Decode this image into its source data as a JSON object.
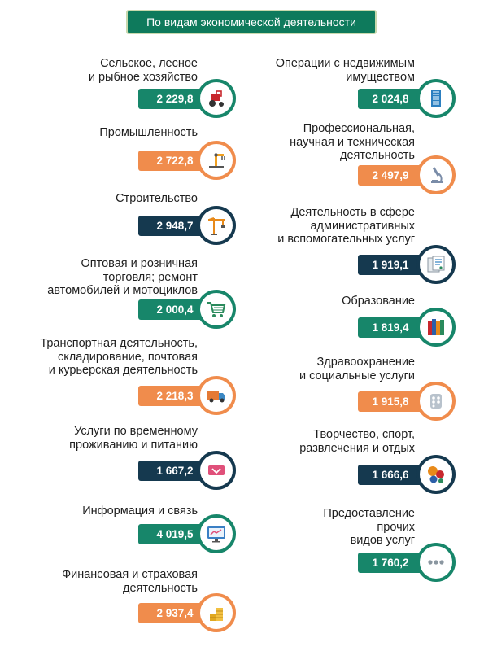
{
  "header": {
    "title": "По видам экономической деятельности"
  },
  "colors": {
    "green": "#17866a",
    "orange": "#f08c4c",
    "navy": "#15394f"
  },
  "left": [
    {
      "label": "Сельское, лесное\nи рыбное хозяйство",
      "value": "2 229,8",
      "color": "green",
      "icon": "tractor-icon"
    },
    {
      "label": "Промышленность",
      "value": "2 722,8",
      "color": "orange",
      "icon": "robot-arm-icon"
    },
    {
      "label": "Строительство",
      "value": "2 948,7",
      "color": "navy",
      "icon": "crane-icon"
    },
    {
      "label": "Оптовая и розничная\nторговля; ремонт\nавтомобилей и мотоциклов",
      "value": "2 000,4",
      "color": "green",
      "icon": "shopping-cart-icon"
    },
    {
      "label": "Транспортная деятельность,\nскладирование, почтовая\nи курьерская деятельность",
      "value": "2 218,3",
      "color": "orange",
      "icon": "truck-icon"
    },
    {
      "label": "Услуги по временному\nпроживанию и питанию",
      "value": "1 667,2",
      "color": "navy",
      "icon": "hotel-sign-icon"
    },
    {
      "label": "Информация и связь",
      "value": "4 019,5",
      "color": "green",
      "icon": "monitor-icon"
    },
    {
      "label": "Финансовая и страховая\nдеятельность",
      "value": "2 937,4",
      "color": "orange",
      "icon": "coins-icon"
    }
  ],
  "right": [
    {
      "label": "Операции с недвижимым\nимуществом",
      "value": "2 024,8",
      "color": "green",
      "icon": "building-icon"
    },
    {
      "label": "Профессиональная,\nнаучная и техническая\nдеятельность",
      "value": "2 497,9",
      "color": "orange",
      "icon": "microscope-icon"
    },
    {
      "label": "Деятельность в сфере\nадминистративных\nи вспомогательных услуг",
      "value": "1 919,1",
      "color": "navy",
      "icon": "documents-icon"
    },
    {
      "label": "Образование",
      "value": "1 819,4",
      "color": "green",
      "icon": "books-icon"
    },
    {
      "label": "Здравоохранение\nи социальные услуги",
      "value": "1 915,8",
      "color": "orange",
      "icon": "pills-icon"
    },
    {
      "label": "Творчество, спорт,\nразвлечения и отдых",
      "value": "1 666,6",
      "color": "navy",
      "icon": "sports-balls-icon"
    },
    {
      "label": "Предоставление\nпрочих\nвидов услуг",
      "value": "1 760,2",
      "color": "green",
      "icon": "ellipsis-icon"
    }
  ]
}
